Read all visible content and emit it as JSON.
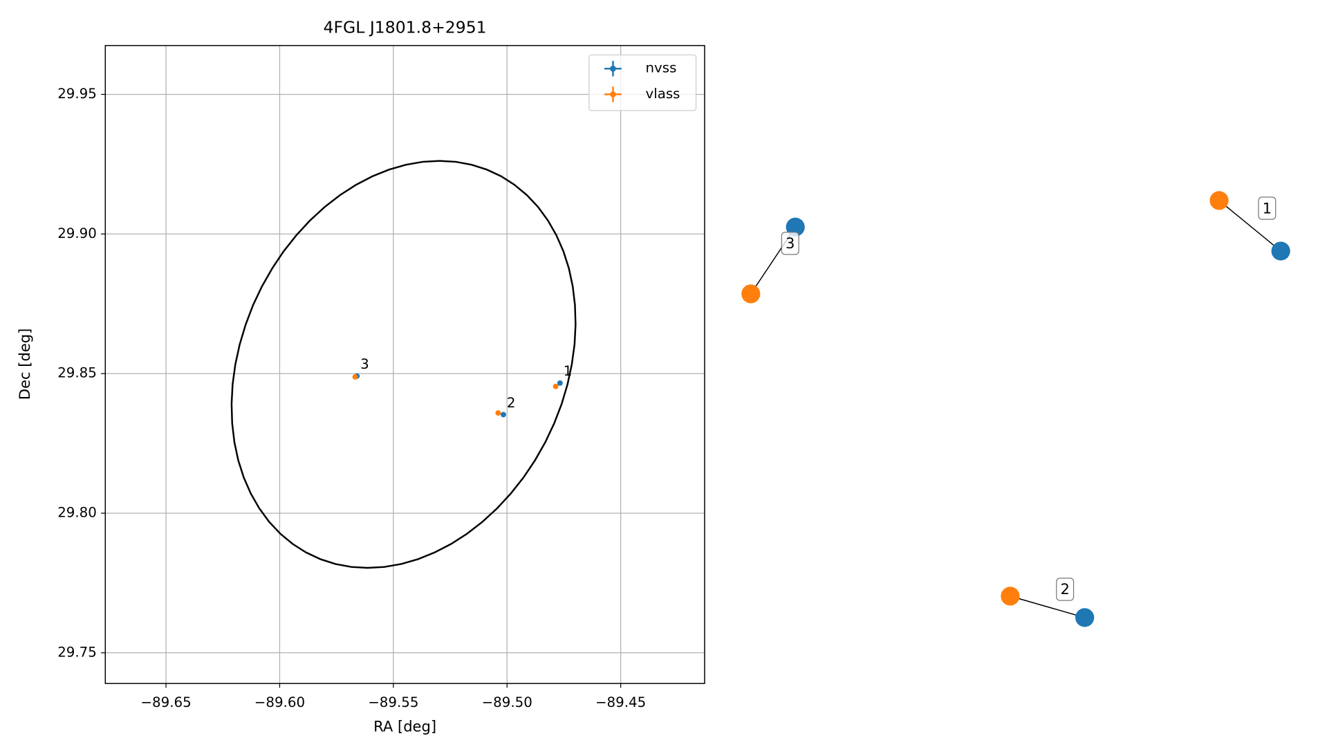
{
  "chart_data": [
    {
      "type": "scatter",
      "title": "4FGL J1801.8+2951",
      "xlabel": "RA [deg]",
      "ylabel": "Dec [deg]",
      "xlim": [
        -89.6767,
        -89.4131
      ],
      "ylim": [
        29.739,
        29.9675
      ],
      "xticks": [
        {
          "value": -89.65,
          "label": "−89.65"
        },
        {
          "value": -89.6,
          "label": "−89.60"
        },
        {
          "value": -89.55,
          "label": "−89.55"
        },
        {
          "value": -89.5,
          "label": "−89.50"
        },
        {
          "value": -89.45,
          "label": "−89.45"
        }
      ],
      "yticks": [
        29.75,
        {
          "value": 29.8,
          "label": "29.80"
        },
        29.85,
        {
          "value": 29.9,
          "label": "29.90"
        },
        29.95
      ],
      "grid": true,
      "legend": "upper right",
      "series": [
        {
          "name": "nvss",
          "color": "#1f77b4",
          "x": [
            -89.4767,
            -89.5016,
            -89.566
          ],
          "values": [
            29.8466,
            29.8353,
            29.8491
          ]
        },
        {
          "name": "vlass",
          "color": "#ff7f0e",
          "x": [
            -89.4786,
            -89.5039,
            -89.5668
          ],
          "values": [
            29.8454,
            29.8359,
            29.8488
          ]
        }
      ],
      "annotations": [
        "1",
        "2",
        "3"
      ],
      "ellipse": {
        "center": [
          -89.5455,
          29.8533
        ],
        "u": [
          0.074,
          0
        ],
        "v": [
          0.0158,
          0.0729
        ]
      }
    },
    {
      "type": "network",
      "labels": [
        "1",
        "2",
        "3"
      ]
    }
  ]
}
